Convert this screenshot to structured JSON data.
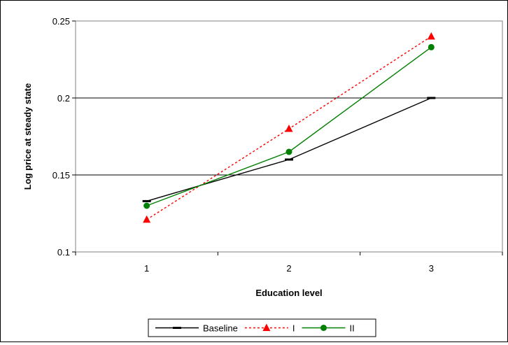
{
  "chart_data": {
    "type": "line",
    "title": "",
    "xlabel": "Education level",
    "ylabel": "Log price at steady state",
    "categories": [
      "1",
      "2",
      "3"
    ],
    "ylim": [
      0.1,
      0.25
    ],
    "yticks": [
      0.1,
      0.15,
      0.2,
      0.25
    ],
    "ytick_labels": [
      "0.1",
      "0.15",
      "0.2",
      "0.25"
    ],
    "grid": "horizontal",
    "legend_position": "bottom",
    "series": [
      {
        "name": "Baseline",
        "values": [
          0.133,
          0.16,
          0.2
        ],
        "color": "#000000",
        "dash": "solid",
        "marker": "dash"
      },
      {
        "name": "I",
        "values": [
          0.121,
          0.18,
          0.24
        ],
        "color": "#ff0000",
        "dash": "dotted",
        "marker": "triangle"
      },
      {
        "name": "II",
        "values": [
          0.13,
          0.165,
          0.233
        ],
        "color": "#008000",
        "dash": "solid",
        "marker": "circle"
      }
    ]
  }
}
